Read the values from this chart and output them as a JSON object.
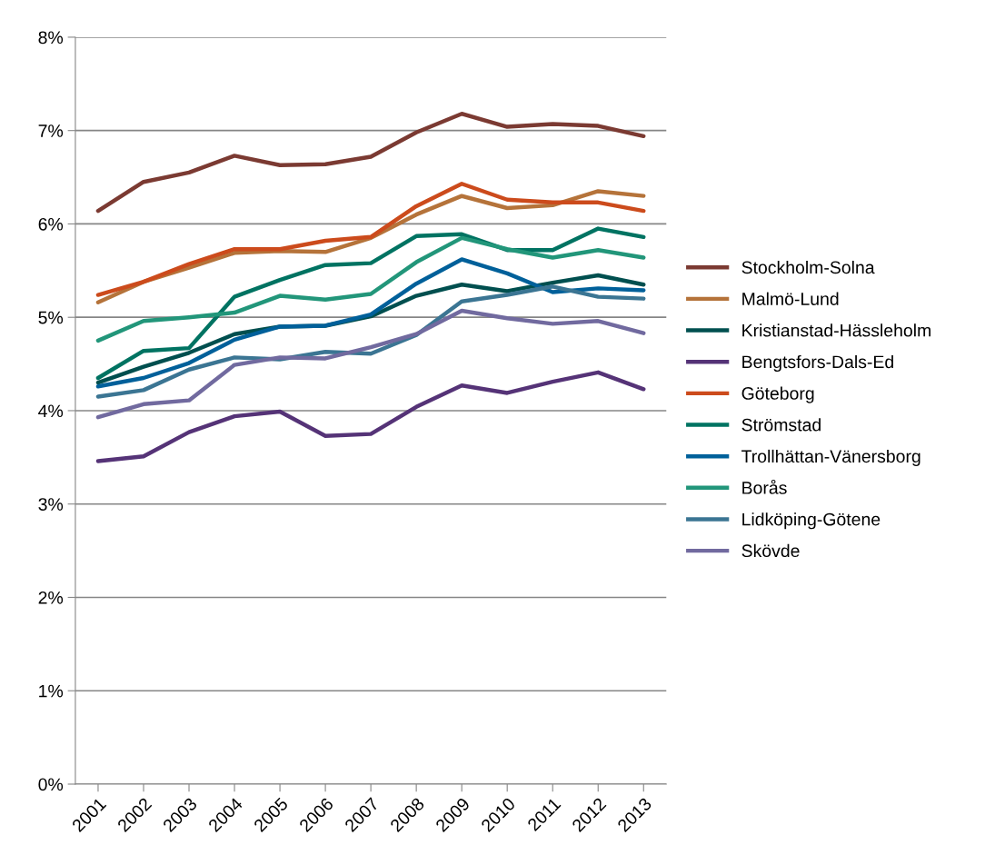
{
  "chart_data": {
    "type": "line",
    "categories": [
      "2001",
      "2002",
      "2003",
      "2004",
      "2005",
      "2006",
      "2007",
      "2008",
      "2009",
      "2010",
      "2011",
      "2012",
      "2013"
    ],
    "ylim": [
      0,
      0.08
    ],
    "yticks": [
      {
        "value": 0,
        "label": "0%"
      },
      {
        "value": 0.01,
        "label": "1%"
      },
      {
        "value": 0.02,
        "label": "2%"
      },
      {
        "value": 0.03,
        "label": "3%"
      },
      {
        "value": 0.04,
        "label": "4%"
      },
      {
        "value": 0.05,
        "label": "5%"
      },
      {
        "value": 0.06,
        "label": "6%"
      },
      {
        "value": 0.07,
        "label": "7%"
      },
      {
        "value": 0.08,
        "label": "8%"
      }
    ],
    "grid": "y",
    "legend": "right",
    "marker": "none",
    "line_style": "solid",
    "series": [
      {
        "name": "Stockholm-Solna",
        "color": "#7b3a32",
        "values": [
          0.0614,
          0.0645,
          0.0655,
          0.0673,
          0.0663,
          0.0664,
          0.0672,
          0.0698,
          0.0718,
          0.0704,
          0.0707,
          0.0705,
          0.0694
        ]
      },
      {
        "name": "Malmö-Lund",
        "color": "#b5733a",
        "values": [
          0.0516,
          0.0538,
          0.0553,
          0.0569,
          0.0571,
          0.057,
          0.0585,
          0.061,
          0.063,
          0.0617,
          0.062,
          0.0635,
          0.063
        ]
      },
      {
        "name": "Kristianstad-Hässleholm",
        "color": "#004f4f",
        "values": [
          0.043,
          0.0447,
          0.0462,
          0.0482,
          0.049,
          0.0491,
          0.0501,
          0.0523,
          0.0535,
          0.0528,
          0.0537,
          0.0545,
          0.0535
        ]
      },
      {
        "name": "Bengtsfors-Dals-Ed",
        "color": "#553377",
        "values": [
          0.0346,
          0.0351,
          0.0377,
          0.0394,
          0.0399,
          0.0373,
          0.0375,
          0.0404,
          0.0427,
          0.0419,
          0.0431,
          0.0441,
          0.0423
        ]
      },
      {
        "name": "Göteborg",
        "color": "#cc4b1c",
        "values": [
          0.0524,
          0.0538,
          0.0557,
          0.0573,
          0.0573,
          0.0582,
          0.0586,
          0.0619,
          0.0643,
          0.0626,
          0.0623,
          0.0623,
          0.0614
        ]
      },
      {
        "name": "Strömstad",
        "color": "#007362",
        "values": [
          0.0435,
          0.0464,
          0.0467,
          0.0522,
          0.054,
          0.0556,
          0.0558,
          0.0587,
          0.0589,
          0.0572,
          0.0572,
          0.0595,
          0.0586
        ]
      },
      {
        "name": "Trollhättan-Vänersborg",
        "color": "#00609a",
        "values": [
          0.0426,
          0.0435,
          0.0451,
          0.0476,
          0.049,
          0.0491,
          0.0503,
          0.0536,
          0.0562,
          0.0547,
          0.0527,
          0.0531,
          0.0529
        ]
      },
      {
        "name": "Borås",
        "color": "#22967a",
        "values": [
          0.0475,
          0.0496,
          0.05,
          0.0505,
          0.0523,
          0.0519,
          0.0525,
          0.0559,
          0.0585,
          0.0573,
          0.0564,
          0.0572,
          0.0564
        ]
      },
      {
        "name": "Lidköping-Götene",
        "color": "#3b7593",
        "values": [
          0.0415,
          0.0422,
          0.0444,
          0.0457,
          0.0455,
          0.0463,
          0.0461,
          0.0481,
          0.0517,
          0.0524,
          0.0533,
          0.0522,
          0.052
        ]
      },
      {
        "name": "Skövde",
        "color": "#716a9f",
        "values": [
          0.0393,
          0.0407,
          0.0411,
          0.0449,
          0.0457,
          0.0456,
          0.0468,
          0.0482,
          0.0507,
          0.0499,
          0.0493,
          0.0496,
          0.0483
        ]
      }
    ]
  }
}
